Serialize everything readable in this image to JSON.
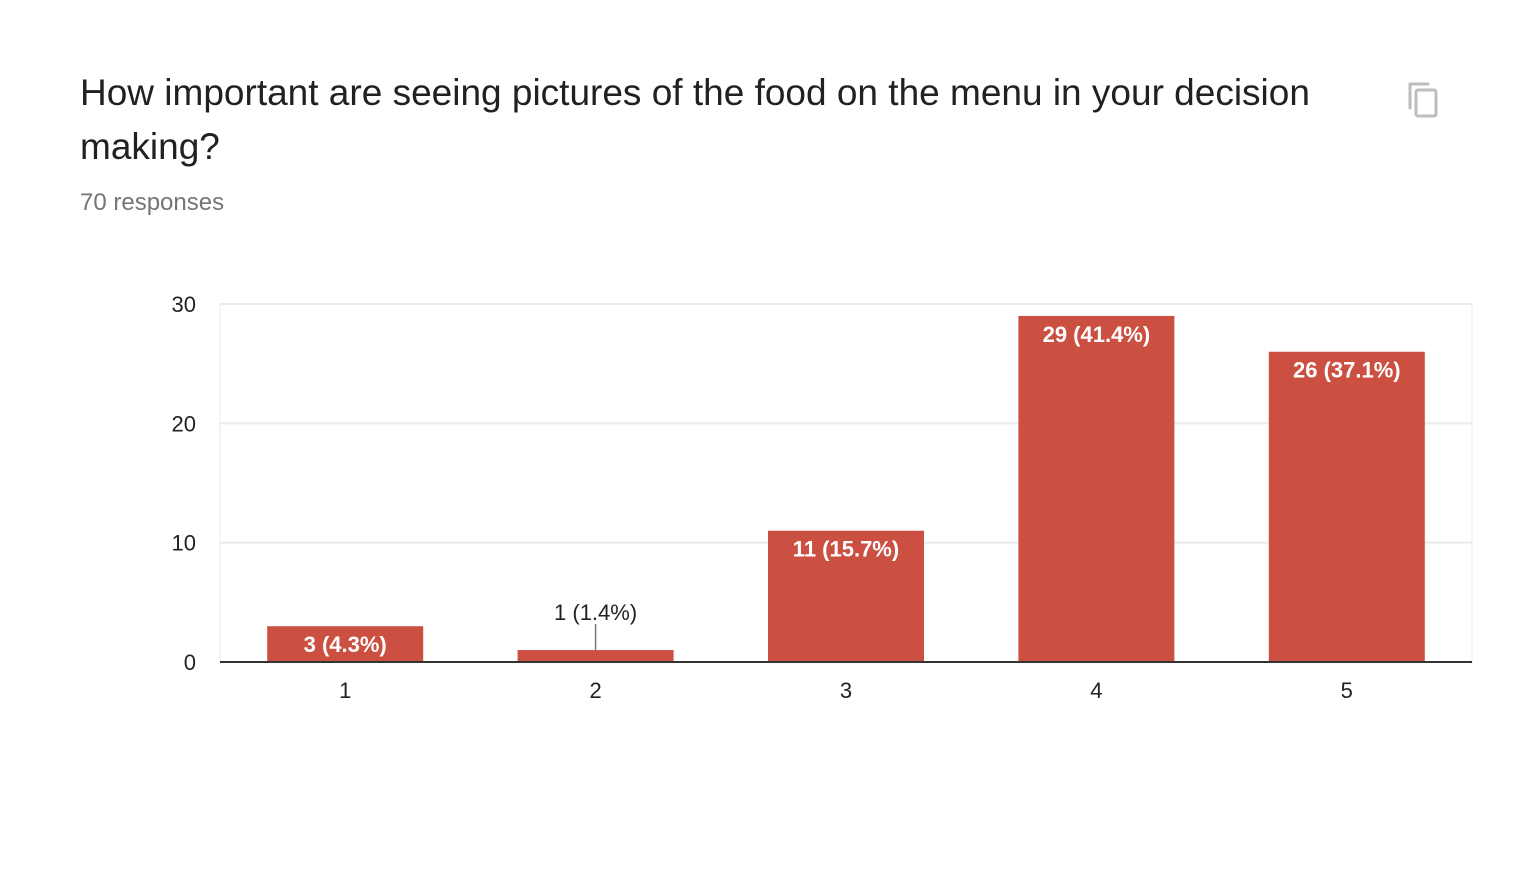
{
  "question": {
    "title": "How important are seeing pictures of the food on the menu in your decision making?",
    "responses_label": "70 responses",
    "copy_icon": "copy-icon"
  },
  "colors": {
    "bar": "#cc5042",
    "grid": "#ebebeb",
    "baseline": "#333333",
    "axis_text": "#222222",
    "title": "#202124",
    "subtitle": "#757575"
  },
  "chart_data": {
    "type": "bar",
    "title": "",
    "xlabel": "",
    "ylabel": "",
    "categories": [
      "1",
      "2",
      "3",
      "4",
      "5"
    ],
    "values": [
      3,
      1,
      11,
      29,
      26
    ],
    "data_labels": [
      "3 (4.3%)",
      "1 (1.4%)",
      "11 (15.7%)",
      "29 (41.4%)",
      "26 (37.1%)"
    ],
    "ylim": [
      0,
      30
    ],
    "yticks": [
      0,
      10,
      20,
      30
    ],
    "grid": true,
    "legend": "none"
  }
}
